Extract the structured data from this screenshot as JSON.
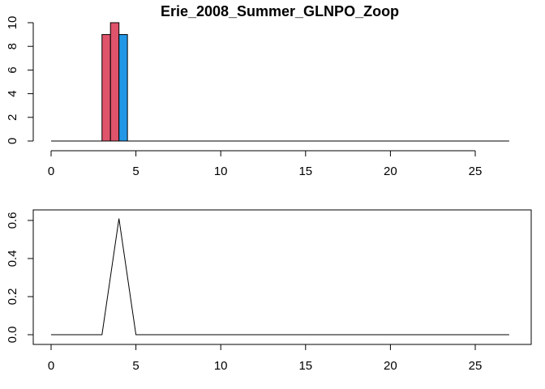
{
  "chart_data": [
    {
      "type": "bar",
      "title": "Erie_2008_Summer_GLNPO_Zoop",
      "xlabel": "",
      "ylabel": "",
      "xlim": [
        0,
        27
      ],
      "ylim": [
        0,
        10
      ],
      "xticks": [
        "0",
        "5",
        "10",
        "15",
        "20",
        "25"
      ],
      "yticks": [
        "0",
        "2",
        "4",
        "6",
        "8",
        "10"
      ],
      "bars": [
        {
          "x0": 3.0,
          "x1": 3.5,
          "value": 9,
          "color": "#DF536B"
        },
        {
          "x0": 3.5,
          "x1": 4.0,
          "value": 10,
          "color": "#DF536B"
        },
        {
          "x0": 4.0,
          "x1": 4.5,
          "value": 9,
          "color": "#2297E6"
        }
      ],
      "baseline": {
        "from": 0,
        "to": 27,
        "value": 0
      }
    },
    {
      "type": "line",
      "title": "",
      "xlabel": "",
      "ylabel": "",
      "xlim": [
        0,
        27
      ],
      "ylim": [
        0,
        0.6
      ],
      "xticks": [
        "0",
        "5",
        "10",
        "15",
        "20",
        "25"
      ],
      "yticks": [
        "0.0",
        "0.2",
        "0.4",
        "0.6"
      ],
      "series": [
        {
          "color": "#000000",
          "x": [
            0,
            3,
            4,
            5,
            27
          ],
          "y": [
            0,
            0,
            0.61,
            0,
            0
          ]
        }
      ]
    }
  ]
}
